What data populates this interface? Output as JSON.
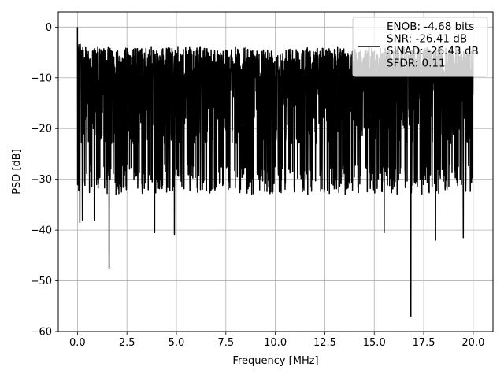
{
  "chart_data": {
    "type": "line",
    "title": "",
    "xlabel": "Frequency [MHz]",
    "ylabel": "PSD [dB]",
    "xlim": [
      -0.97,
      21.0
    ],
    "ylim": [
      -60,
      3
    ],
    "grid": true,
    "legend_placement": "top-right",
    "x_ticks": [
      0.0,
      2.5,
      5.0,
      7.5,
      10.0,
      12.5,
      15.0,
      17.5,
      20.0
    ],
    "x_tick_labels": [
      "0.0",
      "2.5",
      "5.0",
      "7.5",
      "10.0",
      "12.5",
      "15.0",
      "17.5",
      "20.0"
    ],
    "y_ticks": [
      0,
      -10,
      -20,
      -30,
      -40,
      -50,
      -60
    ],
    "y_tick_labels": [
      "0",
      "−10",
      "−20",
      "−30",
      "−40",
      "−50",
      "−60"
    ],
    "series": [
      {
        "color": "#000000",
        "x_range": [
          0.0,
          20.0
        ],
        "typical_range": [
          -27,
          -4
        ],
        "peak": {
          "x": 0.0,
          "y": 0.0
        },
        "notable_dips": [
          {
            "x": 0.12,
            "y": -38.5
          },
          {
            "x": 0.25,
            "y": -38.0
          },
          {
            "x": 0.85,
            "y": -38.0
          },
          {
            "x": 1.6,
            "y": -47.5
          },
          {
            "x": 3.9,
            "y": -40.5
          },
          {
            "x": 4.9,
            "y": -41.0
          },
          {
            "x": 15.5,
            "y": -40.5
          },
          {
            "x": 16.85,
            "y": -57.0
          },
          {
            "x": 18.1,
            "y": -42.0
          },
          {
            "x": 19.5,
            "y": -41.5
          }
        ]
      }
    ],
    "legend": {
      "lines": [
        "ENOB: -4.68 bits",
        "SNR: -26.41 dB",
        "SINAD: -26.43 dB",
        "SFDR: 0.11"
      ]
    }
  }
}
